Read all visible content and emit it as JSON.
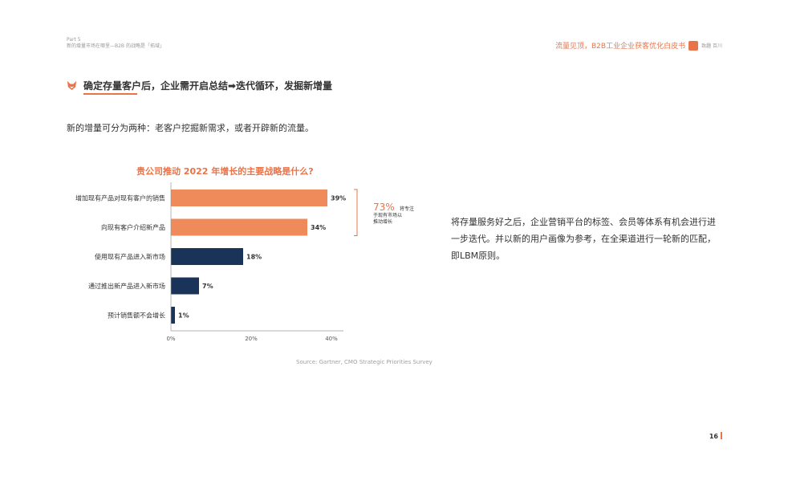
{
  "header": {
    "part": "Part 5",
    "part_subtitle": "新的增量市场在哪里—B2B 的战略是「拓域」",
    "report_title": "流量见顶，B2B工业企业获客优化白皮书",
    "logo_text": "致趣 百川"
  },
  "section": {
    "heading": "确定存量客户后，企业需开启总结➡迭代循环，发掘新增量",
    "intro": "新的增量可分为两种：老客户挖掘新需求，或者开辟新的流量。"
  },
  "chart_data": {
    "type": "bar",
    "orientation": "horizontal",
    "title": "贵公司推动 2022 年增长的主要战略是什么?",
    "categories": [
      "增加现有产品对现有客户的销售",
      "向现有客户介绍新产品",
      "使用现有产品进入新市场",
      "通过推出新产品进入新市场",
      "预计销售额不会增长"
    ],
    "values": [
      39,
      34,
      18,
      7,
      1
    ],
    "value_labels": [
      "39%",
      "34%",
      "18%",
      "7%",
      "1%"
    ],
    "bar_colors": [
      "#ef8a5b",
      "#ef8a5b",
      "#1a3358",
      "#1a3358",
      "#1a3358"
    ],
    "x_ticks": [
      "0%",
      "20%",
      "40%"
    ],
    "xlim": [
      0,
      40
    ],
    "annotation_value": "73%",
    "annotation_text": [
      "将专注",
      "于现有市场以",
      "推动增长"
    ],
    "source": "Source: Gartner, CMO Strategic Priorities Survey"
  },
  "body_text": "将存量服务好之后，企业营销平台的标签、会员等体系有机会进行进一步迭代。并以新的用户画像为参考，在全渠道进行一轮新的匹配，即LBM原则。",
  "page_number": "16",
  "colors": {
    "accent": "#e8744a",
    "navy": "#1a3358"
  }
}
